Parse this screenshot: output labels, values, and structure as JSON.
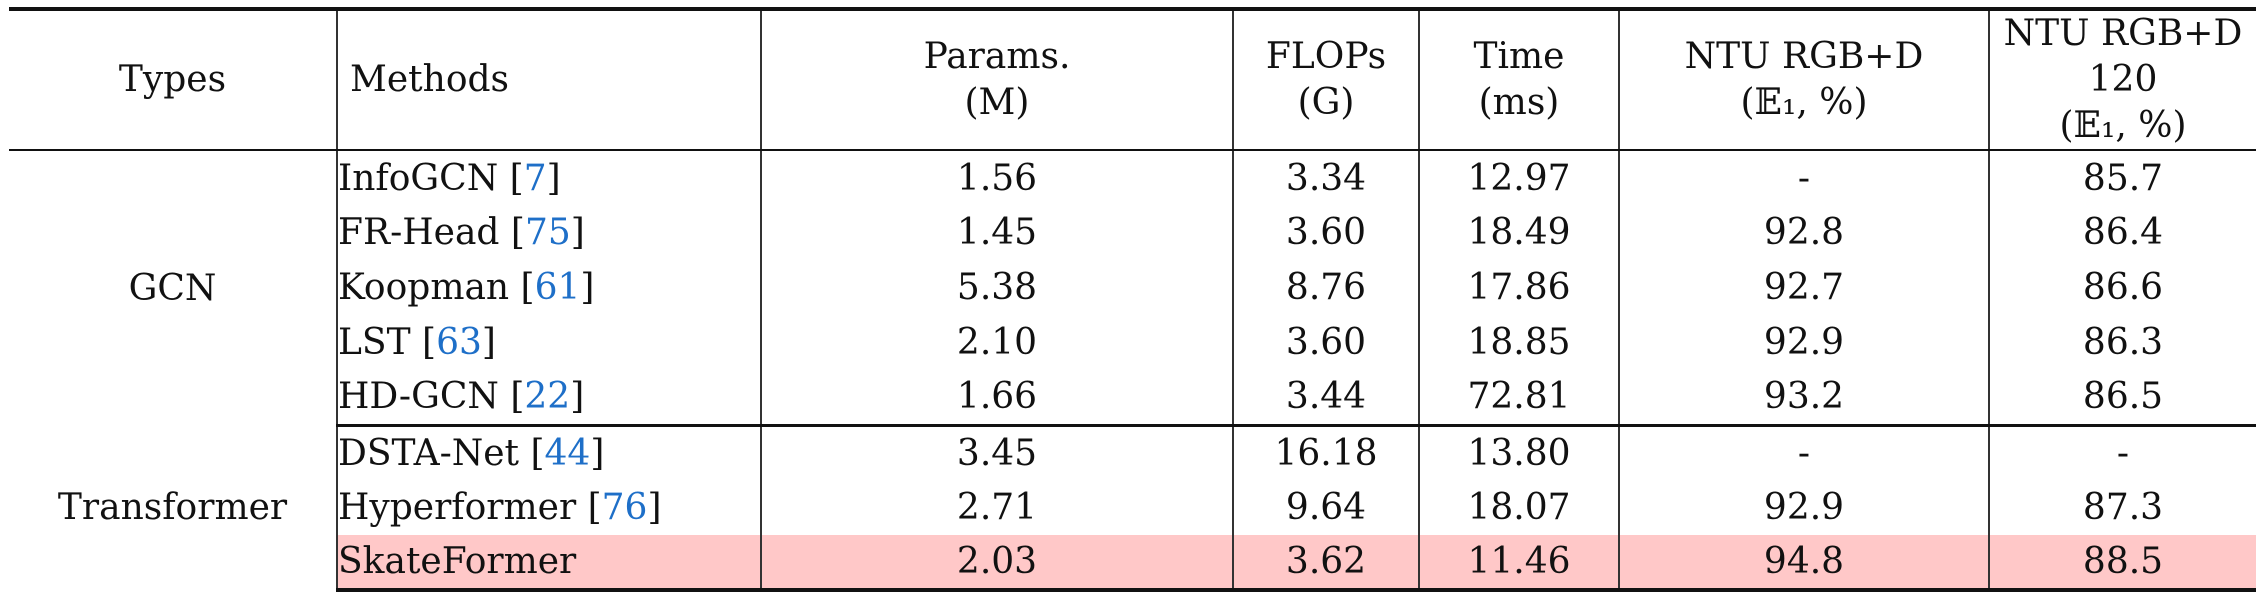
{
  "headers": [
    {
      "l1": "Types",
      "l2": ""
    },
    {
      "l1": "Methods",
      "l2": ""
    },
    {
      "l1": "Params.",
      "l2": "(M)"
    },
    {
      "l1": "FLOPs",
      "l2": "(G)"
    },
    {
      "l1": "Time",
      "l2": "(ms)"
    },
    {
      "l1": "NTU RGB+D",
      "l2": "(𝔼₁, %)"
    },
    {
      "l1": "NTU RGB+D 120",
      "l2": "(𝔼₁, %)"
    }
  ],
  "groups": [
    {
      "type": "GCN",
      "rows": [
        {
          "method": "InfoGCN",
          "cite": "7",
          "params": "1.56",
          "flops": "3.34",
          "time": "12.97",
          "ntu60": "-",
          "ntu120": "85.7"
        },
        {
          "method": "FR-Head",
          "cite": "75",
          "params": "1.45",
          "flops": "3.60",
          "time": "18.49",
          "ntu60": "92.8",
          "ntu120": "86.4"
        },
        {
          "method": "Koopman",
          "cite": "61",
          "params": "5.38",
          "flops": "8.76",
          "time": "17.86",
          "ntu60": "92.7",
          "ntu120": "86.6"
        },
        {
          "method": "LST",
          "cite": "63",
          "params": "2.10",
          "flops": "3.60",
          "time": "18.85",
          "ntu60": "92.9",
          "ntu120": "86.3"
        },
        {
          "method": "HD-GCN",
          "cite": "22",
          "params": "1.66",
          "flops": "3.44",
          "time": "72.81",
          "ntu60": "93.2",
          "ntu120": "86.5"
        }
      ]
    },
    {
      "type": "Transformer",
      "rows": [
        {
          "method": "DSTA-Net",
          "cite": "44",
          "params": "3.45",
          "flops": "16.18",
          "time": "13.80",
          "ntu60": "-",
          "ntu120": "-"
        },
        {
          "method": "Hyperformer",
          "cite": "76",
          "params": "2.71",
          "flops": "9.64",
          "time": "18.07",
          "ntu60": "92.9",
          "ntu120": "87.3"
        },
        {
          "method": "SkateFormer",
          "cite": "",
          "params": "2.03",
          "flops": "3.62",
          "time": "11.46",
          "ntu60": "94.8",
          "ntu120": "88.5"
        }
      ]
    }
  ],
  "highlight_color": "#ffc8c8",
  "citation_color": "#1e6fc8"
}
